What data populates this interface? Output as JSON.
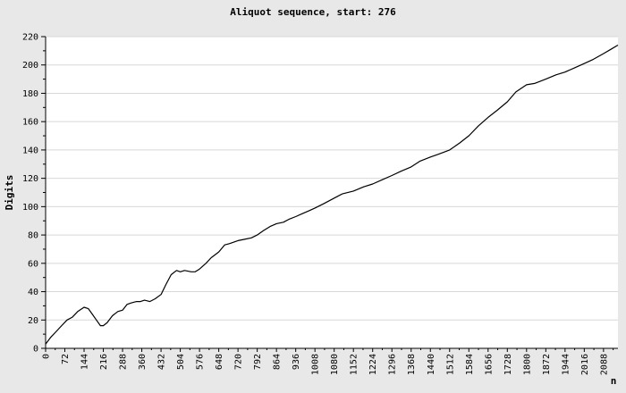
{
  "chart_data": {
    "type": "line",
    "title": "Aliquot sequence, start: 276",
    "xlabel": "n",
    "ylabel": "Digits",
    "xlim": [
      0,
      2142
    ],
    "ylim": [
      0,
      220
    ],
    "x_ticks": [
      0,
      72,
      144,
      216,
      288,
      360,
      432,
      504,
      576,
      648,
      720,
      792,
      864,
      936,
      1008,
      1080,
      1152,
      1224,
      1296,
      1368,
      1440,
      1512,
      1584,
      1656,
      1728,
      1800,
      1872,
      1944,
      2016,
      2088
    ],
    "y_ticks": [
      0,
      20,
      40,
      60,
      80,
      100,
      120,
      140,
      160,
      180,
      200,
      220
    ],
    "grid": true,
    "background": "#ffffff",
    "page_background": "#e8e8e8",
    "line_color": "#000000",
    "series": [
      {
        "x": [
          0,
          20,
          40,
          60,
          80,
          100,
          120,
          144,
          160,
          175,
          190,
          205,
          216,
          230,
          250,
          270,
          288,
          305,
          320,
          340,
          355,
          370,
          390,
          410,
          432,
          450,
          470,
          490,
          504,
          520,
          545,
          560,
          576,
          600,
          620,
          648,
          670,
          690,
          720,
          745,
          770,
          792,
          815,
          840,
          864,
          890,
          910,
          936,
          960,
          985,
          1008,
          1040,
          1080,
          1110,
          1152,
          1190,
          1224,
          1260,
          1296,
          1330,
          1368,
          1400,
          1440,
          1470,
          1512,
          1550,
          1584,
          1620,
          1656,
          1690,
          1728,
          1760,
          1800,
          1830,
          1872,
          1910,
          1944,
          1980,
          2016,
          2050,
          2088,
          2115,
          2142
        ],
        "y": [
          3,
          8,
          12,
          16,
          20,
          22,
          26,
          29,
          28,
          24,
          20,
          16,
          16,
          18,
          23,
          26,
          27,
          31,
          32,
          33,
          33,
          34,
          33,
          35,
          38,
          45,
          52,
          55,
          54,
          55,
          54,
          54,
          56,
          60,
          64,
          68,
          73,
          74,
          76,
          77,
          78,
          80,
          83,
          86,
          88,
          89,
          91,
          93,
          95,
          97,
          99,
          102,
          106,
          109,
          111,
          114,
          116,
          119,
          122,
          125,
          128,
          132,
          135,
          137,
          140,
          145,
          150,
          157,
          163,
          168,
          174,
          181,
          186,
          187,
          190,
          193,
          195,
          198,
          201,
          204,
          208,
          211,
          214
        ]
      }
    ]
  }
}
